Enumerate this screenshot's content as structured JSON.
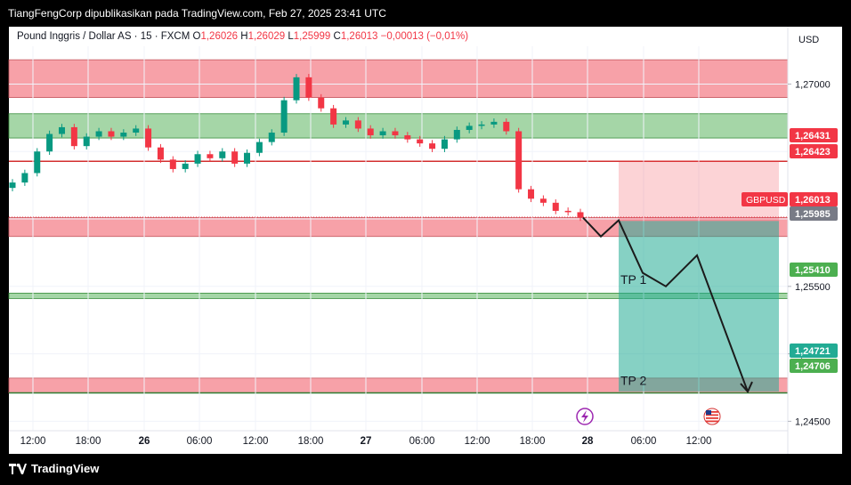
{
  "header": {
    "publisher_line": "TiangFengCorp dipublikasikan pada TradingView.com, Feb 27, 2025 23:41 UTC"
  },
  "legend": {
    "symbol": "Pound Inggris / Dollar AS · 15 · FXCM",
    "o_label": "O",
    "o_value": "1,26026",
    "h_label": "H",
    "h_value": "1,26029",
    "l_label": "L",
    "l_value": "1,25999",
    "c_label": "C",
    "c_value": "1,26013",
    "change": "−0,00013 (−0,01%)"
  },
  "price_axis": {
    "currency": "USD",
    "ticks": [
      "1,27000",
      "1,25500",
      "1,25000",
      "1,24500"
    ],
    "badges": [
      {
        "text": "1,26431",
        "color": "#f23645"
      },
      {
        "text": "1,26423",
        "color": "#f23645"
      },
      {
        "text": "1,26013",
        "color": "#f23645",
        "symbol": "GBPUSD"
      },
      {
        "text": "1,25985",
        "color": "#787b86"
      },
      {
        "text": "1,25410",
        "color": "#4caf50"
      },
      {
        "text": "1,24721",
        "color": "#22ab94"
      },
      {
        "text": "1,24706",
        "color": "#4caf50"
      }
    ]
  },
  "time_axis": {
    "ticks": [
      "12:00",
      "18:00",
      "26",
      "06:00",
      "12:00",
      "18:00",
      "27",
      "06:00",
      "12:00",
      "18:00",
      "28",
      "06:00",
      "12:00"
    ]
  },
  "annotations": {
    "tp1": "TP 1",
    "tp2": "TP 2"
  },
  "event_icons": [
    "lightning-icon",
    "us-flag-icon"
  ],
  "footer": {
    "brand": "TradingView"
  },
  "chart_data": {
    "type": "candlestick",
    "symbol": "GBPUSD",
    "timeframe": "15",
    "y_range": [
      1.2443,
      1.2728
    ],
    "last_price": 1.26013,
    "zones": [
      {
        "from": 1.269,
        "to": 1.2718,
        "color": "#f7a1a8"
      },
      {
        "from": 1.266,
        "to": 1.2678,
        "color": "#a5d6a7"
      },
      {
        "from": 1.2587,
        "to": 1.2601,
        "color": "#f7a1a8"
      },
      {
        "from": 1.2541,
        "to": 1.2545,
        "color": "#a5d6a7"
      },
      {
        "from": 1.2471,
        "to": 1.2482,
        "color": "#f7a1a8"
      }
    ],
    "resistance_line": 1.26427,
    "position": {
      "entry": 1.25985,
      "stop": 1.26431,
      "target": 1.24721
    },
    "projected_path": [
      1.2601,
      1.2587,
      1.2599,
      1.256,
      1.255,
      1.2573,
      1.2472
    ],
    "price_path": [
      1.2627,
      1.2634,
      1.265,
      1.2663,
      1.2668,
      1.2654,
      1.2661,
      1.2665,
      1.2661,
      1.2664,
      1.2667,
      1.2653,
      1.2644,
      1.2637,
      1.2641,
      1.2648,
      1.2645,
      1.265,
      1.2641,
      1.2649,
      1.2657,
      1.2664,
      1.2688,
      1.2705,
      1.269,
      1.2682,
      1.267,
      1.2673,
      1.2667,
      1.2662,
      1.2665,
      1.2662,
      1.2659,
      1.2656,
      1.2652,
      1.2659,
      1.2666,
      1.2669,
      1.267,
      1.2672,
      1.2665,
      1.2622,
      1.2615,
      1.2612,
      1.2606,
      1.2605,
      1.2601
    ]
  }
}
